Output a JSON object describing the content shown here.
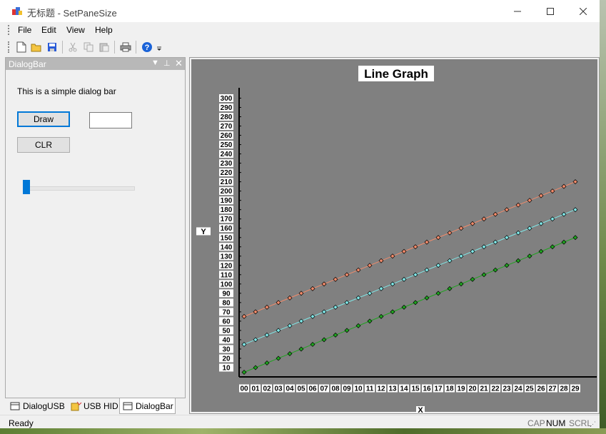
{
  "window": {
    "title": "无标题 - SetPaneSize",
    "controls": [
      "minimize-icon",
      "maximize-icon",
      "close-icon"
    ]
  },
  "menu": {
    "items": [
      {
        "label": "File"
      },
      {
        "label": "Edit"
      },
      {
        "label": "View"
      },
      {
        "label": "Help"
      }
    ]
  },
  "toolbar": {
    "buttons": [
      "new-icon",
      "open-icon",
      "save-icon",
      "cut-icon",
      "copy-icon",
      "paste-icon",
      "print-icon",
      "help-icon"
    ]
  },
  "dialogbar": {
    "caption": "DialogBar",
    "text": "This is a simple dialog bar",
    "draw_label": "Draw",
    "clr_label": "CLR",
    "edit_value": "",
    "slider_value": 0
  },
  "tabs": [
    {
      "label": "DialogUSB"
    },
    {
      "label": "USB HID"
    },
    {
      "label": "DialogBar"
    }
  ],
  "status": {
    "ready": "Ready",
    "cap": "CAP",
    "num": "NUM",
    "scrl": "SCRL"
  },
  "colors": {
    "plot_bg": "#808080",
    "series1": "#f08a6a",
    "series2": "#7fe6e6",
    "series3": "#1fa31f"
  },
  "chart_data": {
    "type": "line",
    "title": "Line Graph",
    "xlabel": "X",
    "ylabel": "Y",
    "categories": [
      "00",
      "01",
      "02",
      "03",
      "04",
      "05",
      "06",
      "07",
      "08",
      "09",
      "10",
      "11",
      "12",
      "13",
      "14",
      "15",
      "16",
      "17",
      "18",
      "19",
      "20",
      "21",
      "22",
      "23",
      "24",
      "25",
      "26",
      "27",
      "28",
      "29"
    ],
    "yticks": [
      10,
      20,
      30,
      40,
      50,
      60,
      70,
      80,
      90,
      100,
      110,
      120,
      130,
      140,
      150,
      160,
      170,
      180,
      190,
      200,
      210,
      220,
      230,
      240,
      250,
      260,
      270,
      280,
      290,
      300
    ],
    "ylim": [
      0,
      310
    ],
    "grid": false,
    "series": [
      {
        "values": [
          65,
          70,
          75,
          80,
          85,
          90,
          95,
          100,
          105,
          110,
          115,
          120,
          125,
          130,
          135,
          140,
          145,
          150,
          155,
          160,
          165,
          170,
          175,
          180,
          185,
          190,
          195,
          200,
          205,
          210
        ],
        "color": "#f08a6a"
      },
      {
        "values": [
          35,
          40,
          45,
          50,
          55,
          60,
          65,
          70,
          75,
          80,
          85,
          90,
          95,
          100,
          105,
          110,
          115,
          120,
          125,
          130,
          135,
          140,
          145,
          150,
          155,
          160,
          165,
          170,
          175,
          180
        ],
        "color": "#7fe6e6"
      },
      {
        "values": [
          5,
          10,
          15,
          20,
          25,
          30,
          35,
          40,
          45,
          50,
          55,
          60,
          65,
          70,
          75,
          80,
          85,
          90,
          95,
          100,
          105,
          110,
          115,
          120,
          125,
          130,
          135,
          140,
          145,
          150
        ],
        "color": "#1fa31f"
      }
    ]
  }
}
